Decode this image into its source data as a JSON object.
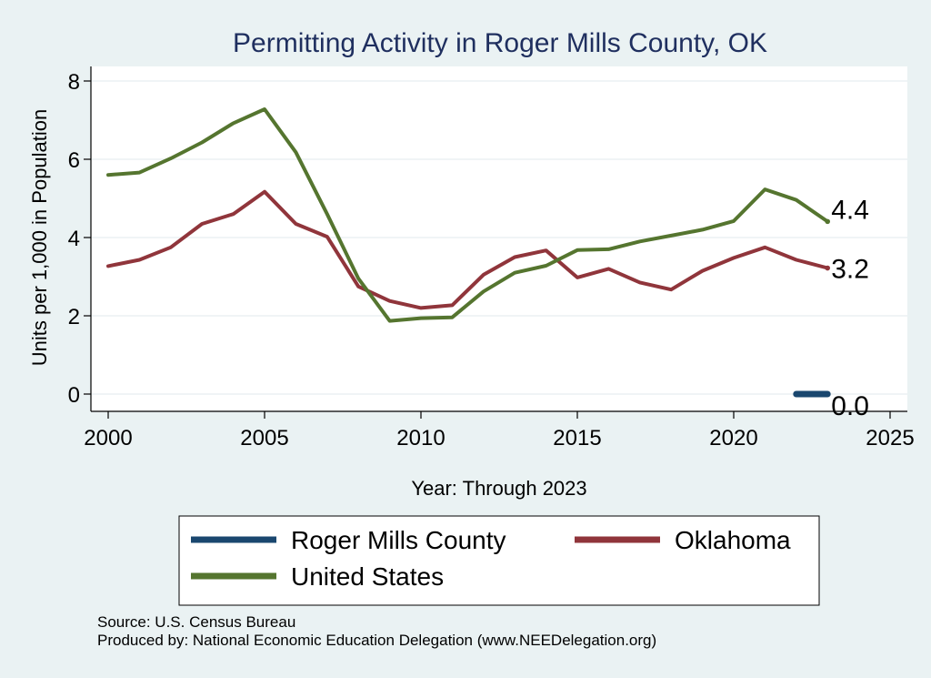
{
  "chart_data": {
    "type": "line",
    "title": "Permitting Activity in Roger Mills County, OK",
    "xlabel": "Year: Through 2023",
    "ylabel": "Units per 1,000 in Population",
    "xlim": [
      2000,
      2025
    ],
    "ylim": [
      0,
      8
    ],
    "x_ticks": [
      2000,
      2005,
      2010,
      2015,
      2020,
      2025
    ],
    "y_ticks": [
      0,
      2,
      4,
      6,
      8
    ],
    "grid": true,
    "legend_position": "bottom",
    "series": [
      {
        "name": "Roger Mills County",
        "color": "#1a476f",
        "x": [
          2022,
          2023
        ],
        "values": [
          0.0,
          0.0
        ],
        "end_label": "0.0"
      },
      {
        "name": "Oklahoma",
        "color": "#90353b",
        "x": [
          2000,
          2001,
          2002,
          2003,
          2004,
          2005,
          2006,
          2007,
          2008,
          2009,
          2010,
          2011,
          2012,
          2013,
          2014,
          2015,
          2016,
          2017,
          2018,
          2019,
          2020,
          2021,
          2022,
          2023
        ],
        "values": [
          3.27,
          3.43,
          3.75,
          4.35,
          4.6,
          5.17,
          4.35,
          4.02,
          2.75,
          2.38,
          2.2,
          2.27,
          3.05,
          3.5,
          3.67,
          2.98,
          3.2,
          2.85,
          2.67,
          3.15,
          3.48,
          3.75,
          3.43,
          3.22
        ],
        "end_label": "3.2"
      },
      {
        "name": "United States",
        "color": "#55752f",
        "x": [
          2000,
          2001,
          2002,
          2003,
          2004,
          2005,
          2006,
          2007,
          2008,
          2009,
          2010,
          2011,
          2012,
          2013,
          2014,
          2015,
          2016,
          2017,
          2018,
          2019,
          2020,
          2021,
          2022,
          2023
        ],
        "values": [
          5.6,
          5.66,
          6.02,
          6.43,
          6.92,
          7.28,
          6.18,
          4.6,
          2.95,
          1.87,
          1.94,
          1.96,
          2.62,
          3.1,
          3.28,
          3.68,
          3.7,
          3.9,
          4.05,
          4.2,
          4.42,
          5.23,
          4.96,
          4.41
        ],
        "end_label": "4.4"
      }
    ],
    "notes": [
      "Source: U.S. Census Bureau",
      "Produced by: National Economic Education Delegation (www.NEEDelegation.org)"
    ]
  }
}
